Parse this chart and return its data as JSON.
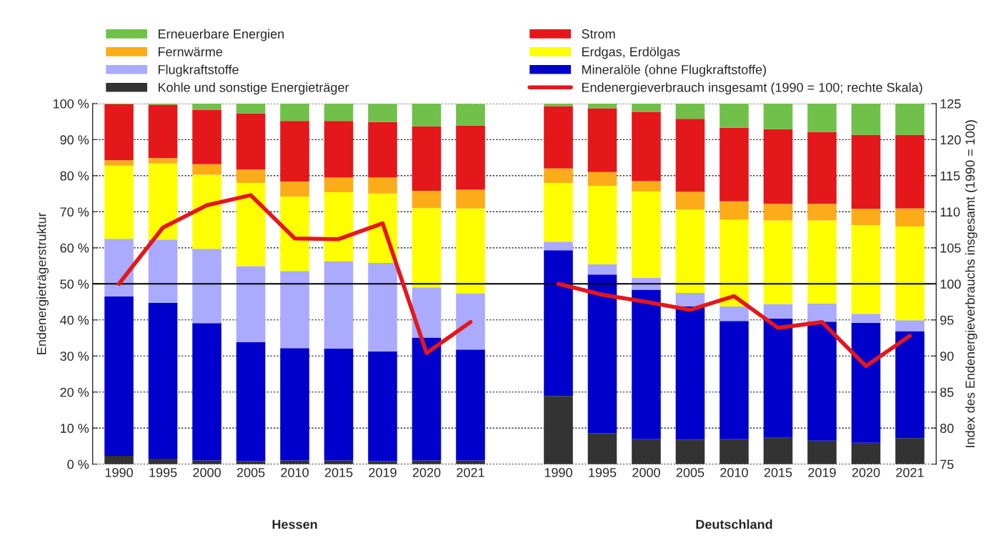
{
  "chart_data": {
    "type": "bar",
    "stacked": true,
    "categories": [
      "1990",
      "1995",
      "2000",
      "2005",
      "2010",
      "2015",
      "2019",
      "2020",
      "2021",
      null,
      "1990",
      "1995",
      "2000",
      "2005",
      "2010",
      "2015",
      "2019",
      "2020",
      "2021"
    ],
    "ylabel": "Endenergieträgerstruktur",
    "y2label": "Index des Endenergieverbrauchs insgesamt (1990 = 100)",
    "ylim": [
      0,
      100
    ],
    "yticks": [
      {
        "value": 0,
        "label": "0 %"
      },
      {
        "value": 10,
        "label": "10 %"
      },
      {
        "value": 20,
        "label": "20 %"
      },
      {
        "value": 30,
        "label": "30 %"
      },
      {
        "value": 40,
        "label": "40 %"
      },
      {
        "value": 50,
        "label": "50 %"
      },
      {
        "value": 60,
        "label": "60 %"
      },
      {
        "value": 70,
        "label": "70 %"
      },
      {
        "value": 80,
        "label": "80 %"
      },
      {
        "value": 90,
        "label": "90 %"
      },
      {
        "value": 100,
        "label": "100 %"
      }
    ],
    "y2lim": [
      75,
      125
    ],
    "y2ticks": [
      75,
      80,
      85,
      90,
      95,
      100,
      105,
      110,
      115,
      120,
      125
    ],
    "grid": "y",
    "legend": "top",
    "ref_lines": [
      {
        "axis": "y",
        "value": 50,
        "color": "#000000",
        "line_style": "solid"
      }
    ],
    "annotations": [
      "Hessen",
      "Deutschland"
    ],
    "series": [
      {
        "name": "Kohle und sonstige Energieträger",
        "color": "#333333",
        "values": [
          2.3,
          1.5,
          1.0,
          0.8,
          1.0,
          1.0,
          0.8,
          1.0,
          1.0,
          null,
          18.9,
          8.6,
          6.9,
          6.8,
          6.9,
          7.3,
          6.5,
          5.9,
          7.2
        ]
      },
      {
        "name": "Mineralöle (ohne Flugkraftstoffe)",
        "color": "#0000cc",
        "values": [
          44.2,
          43.2,
          38.1,
          33.0,
          31.2,
          31.1,
          30.5,
          34.1,
          30.8,
          null,
          40.4,
          44.0,
          41.5,
          36.9,
          32.8,
          33.1,
          33.0,
          33.3,
          29.7
        ]
      },
      {
        "name": "Flugkraftstoffe",
        "color": "#aaaaff",
        "values": [
          16.0,
          17.6,
          20.6,
          21.1,
          21.4,
          24.1,
          24.5,
          13.9,
          15.6,
          null,
          2.4,
          2.8,
          3.3,
          3.8,
          4.0,
          4.0,
          5.0,
          2.5,
          3.0
        ]
      },
      {
        "name": "Erdgas, Erdölgas",
        "color": "#ffff00",
        "values": [
          20.3,
          21.1,
          20.6,
          23.1,
          20.6,
          19.2,
          19.3,
          22.0,
          23.5,
          null,
          16.3,
          21.8,
          23.9,
          23.1,
          24.1,
          23.2,
          23.1,
          24.6,
          26.0
        ]
      },
      {
        "name": "Fernwärme",
        "color": "#fbac18",
        "values": [
          1.5,
          1.5,
          2.9,
          3.7,
          4.2,
          4.1,
          4.4,
          4.8,
          5.2,
          null,
          4.0,
          3.8,
          2.9,
          4.9,
          5.1,
          4.6,
          4.6,
          4.5,
          5.0
        ]
      },
      {
        "name": "Strom",
        "color": "#e4171b",
        "values": [
          15.5,
          14.8,
          15.1,
          15.6,
          16.8,
          15.7,
          15.4,
          17.9,
          17.8,
          null,
          17.3,
          17.7,
          19.2,
          20.3,
          20.4,
          20.7,
          19.9,
          20.5,
          20.4
        ]
      },
      {
        "name": "Erneuerbare Energien",
        "color": "#70c04a",
        "values": [
          0.2,
          0.3,
          1.7,
          2.7,
          4.8,
          4.8,
          5.0,
          6.3,
          6.0,
          null,
          0.7,
          1.3,
          2.3,
          4.2,
          6.7,
          7.1,
          7.9,
          8.7,
          8.7
        ]
      },
      {
        "name": "Endenergieverbrauch insgesamt (1990 = 100; rechte Skala)",
        "type": "line",
        "axis": "y2",
        "color": "#e4171b",
        "line_style": "solid",
        "marker": "none",
        "values": [
          100.0,
          107.8,
          110.9,
          112.3,
          106.3,
          106.2,
          108.4,
          90.4,
          94.7,
          null,
          100.0,
          98.5,
          97.5,
          96.4,
          98.3,
          93.9,
          94.7,
          88.6,
          92.8
        ]
      }
    ]
  }
}
